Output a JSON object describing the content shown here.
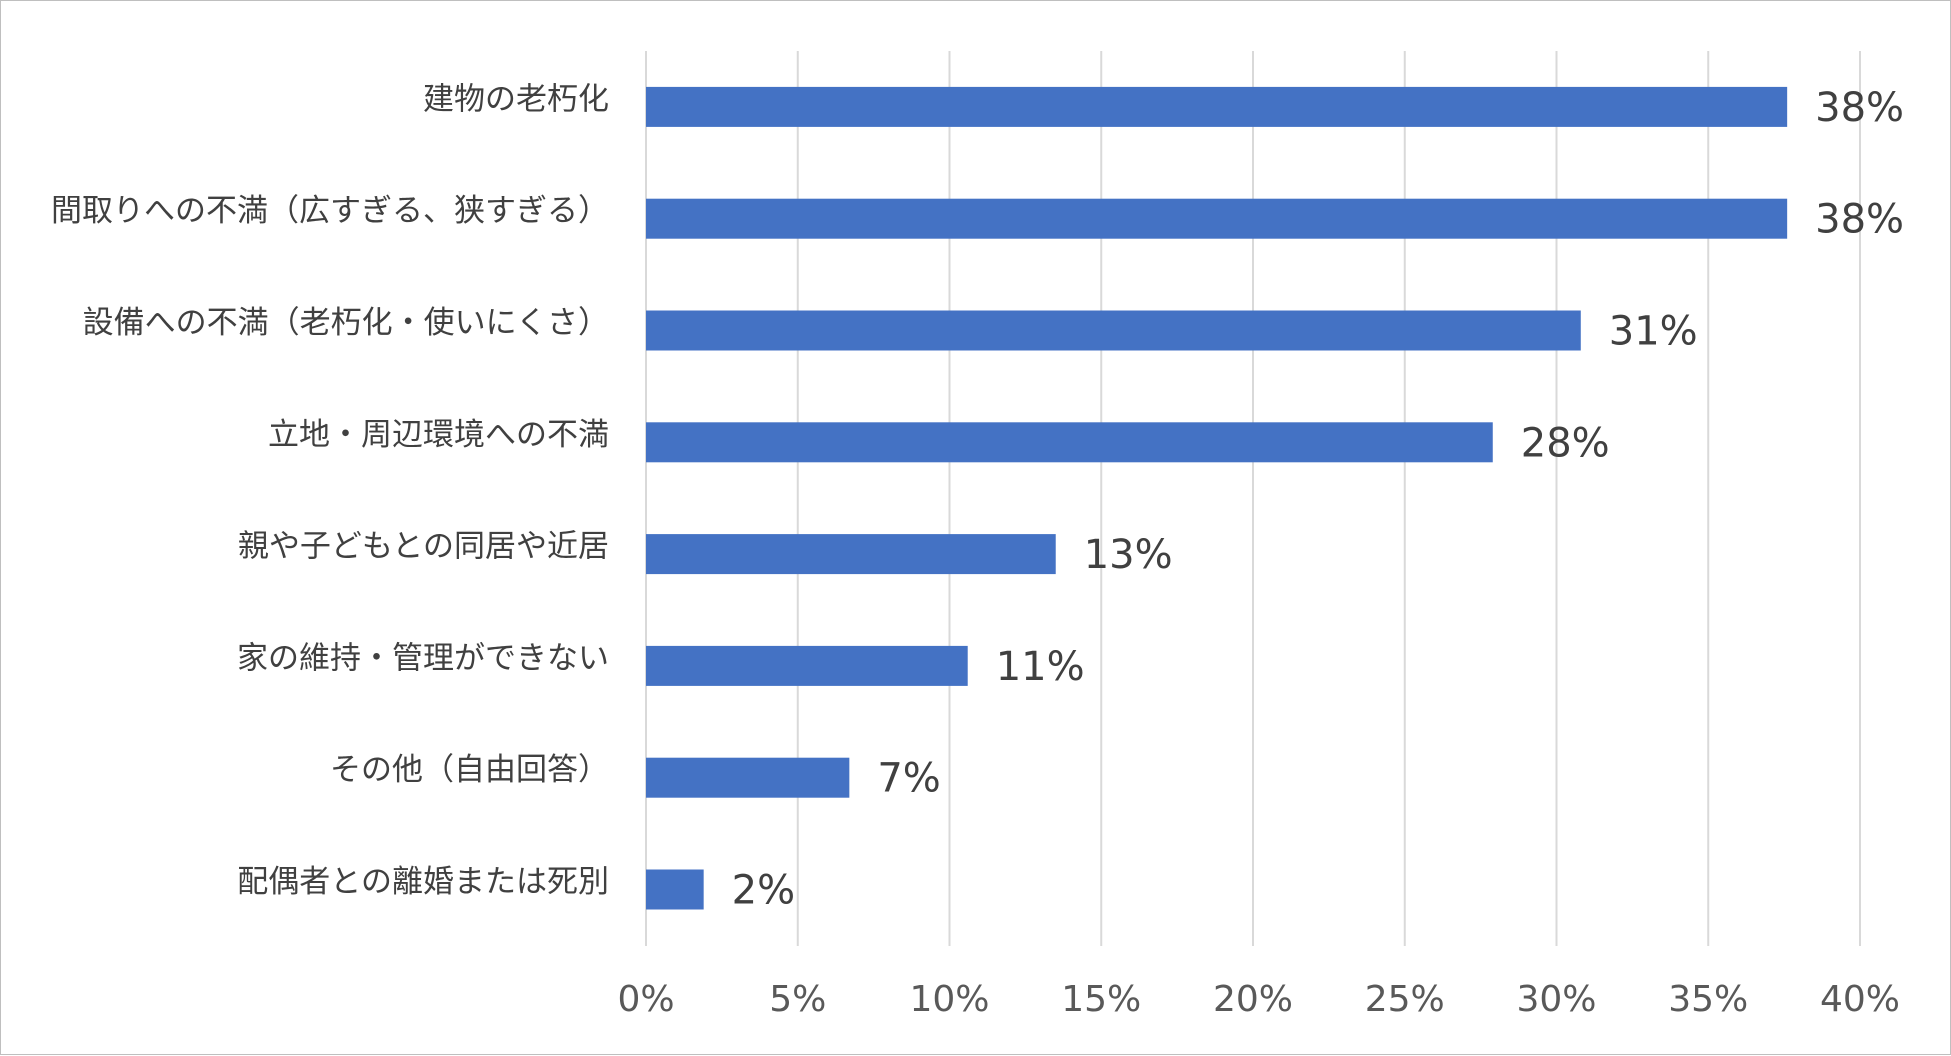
{
  "chart_data": {
    "type": "bar",
    "orientation": "horizontal",
    "categories": [
      "建物の老朽化",
      "間取りへの不満（広すぎる、狭すぎる）",
      "設備への不満（老朽化・使いにくさ）",
      "立地・周辺環境への不満",
      "親や子どもとの同居や近居",
      "家の維持・管理ができない",
      "その他（自由回答）",
      "配偶者との離婚または死別"
    ],
    "values": [
      37.6,
      37.6,
      30.8,
      27.9,
      13.5,
      10.6,
      6.7,
      1.9
    ],
    "value_labels": [
      "38%",
      "38%",
      "31%",
      "28%",
      "13%",
      "11%",
      "7%",
      "2%"
    ],
    "x_ticks": [
      0,
      5,
      10,
      15,
      20,
      25,
      30,
      35,
      40
    ],
    "x_tick_labels": [
      "0%",
      "5%",
      "10%",
      "15%",
      "20%",
      "25%",
      "30%",
      "35%",
      "40%"
    ],
    "xlim": [
      0,
      40
    ],
    "title": "",
    "xlabel": "",
    "ylabel": "",
    "grid": "vertical",
    "legend": "none",
    "bar_color": "#4472c4"
  }
}
